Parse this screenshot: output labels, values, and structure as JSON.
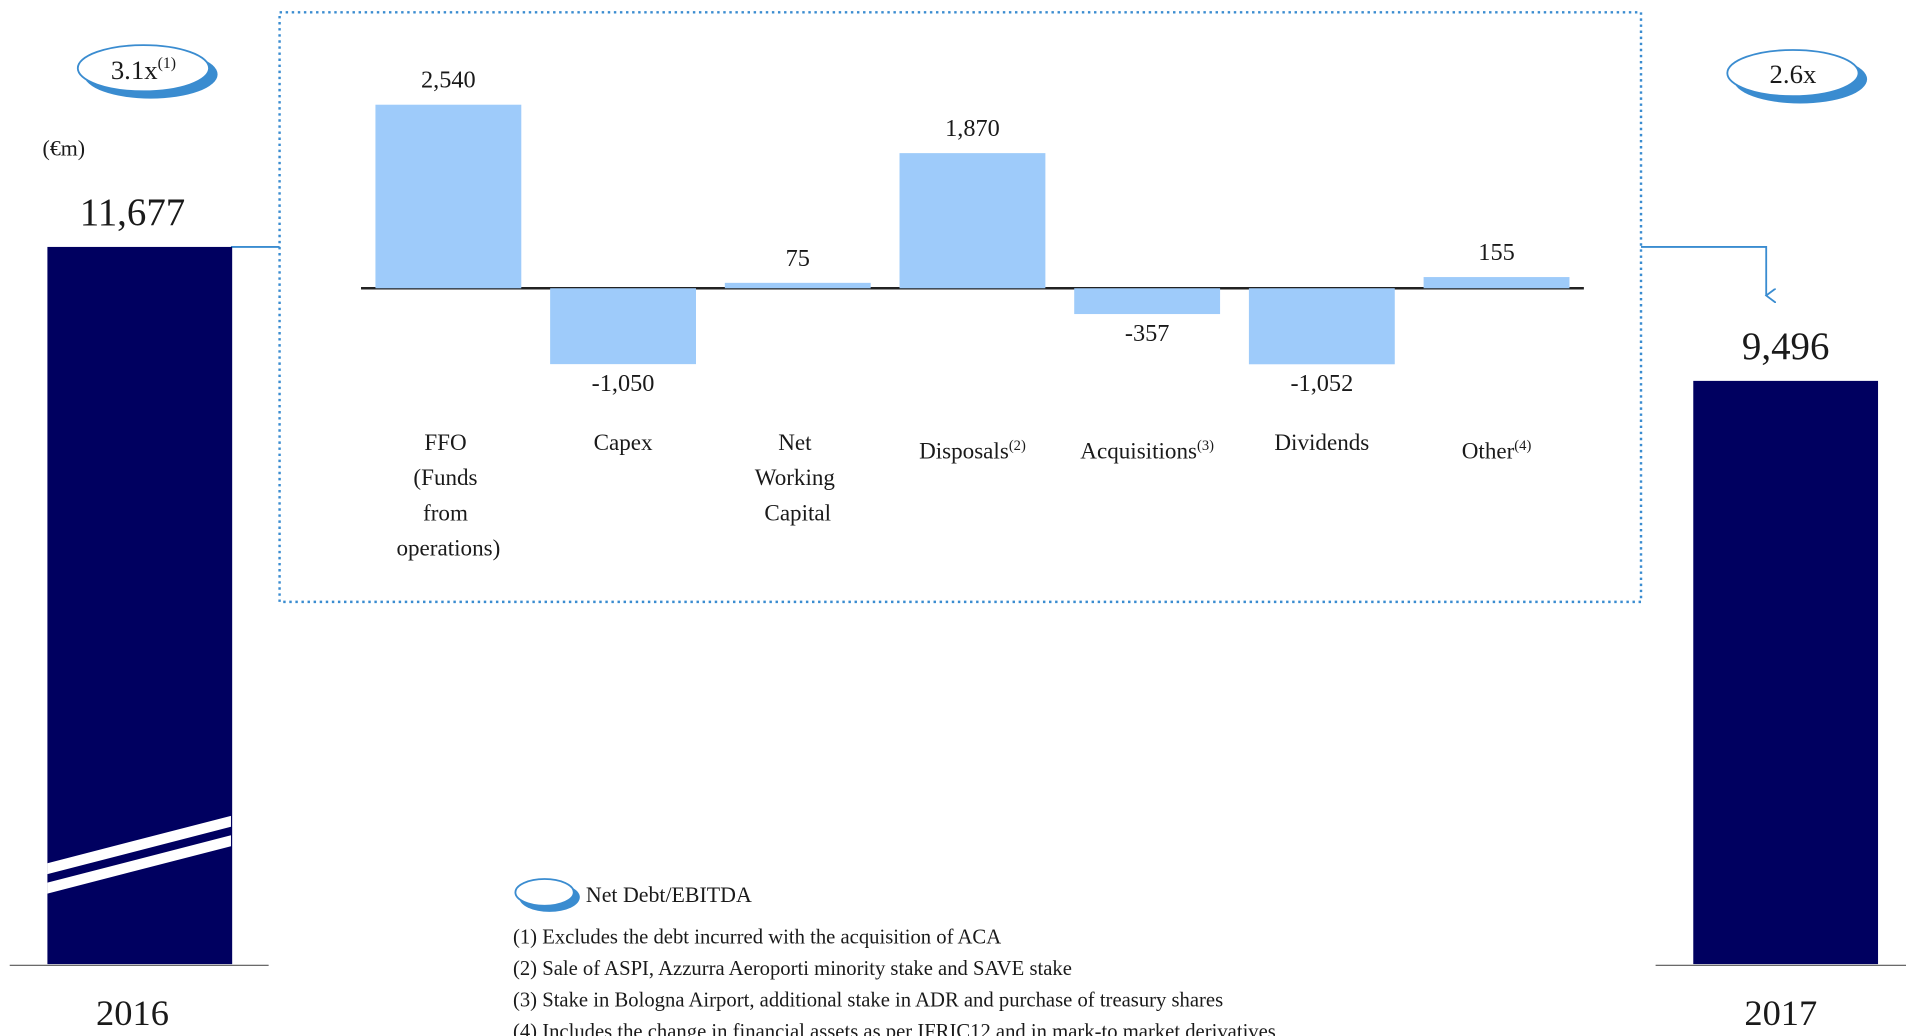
{
  "chart_data": {
    "type": "bar",
    "unit_label": "(€m)",
    "categories": [
      "FFO (Funds from operations)",
      "Capex",
      "Net Working Capital",
      "Disposals",
      "Acquisitions",
      "Dividends",
      "Other"
    ],
    "category_notes": [
      null,
      null,
      null,
      "(2)",
      "(3)",
      null,
      "(4)"
    ],
    "values": [
      2540,
      -1050,
      75,
      1870,
      -357,
      -1052,
      155
    ],
    "value_labels": [
      "2,540",
      "-1,050",
      "75",
      "1,870",
      "-357",
      "-1,052",
      "155"
    ],
    "color": "#9ecbfa",
    "start": {
      "category": "2016",
      "value": 11677,
      "value_label": "11,677",
      "ratio": "3.1x",
      "ratio_note": "(1)",
      "color": "#000060"
    },
    "end": {
      "category": "2017",
      "value": 9496,
      "value_label": "9,496",
      "ratio": "2.6x",
      "color": "#000060"
    },
    "legend": "Net Debt/EBITDA",
    "footnotes": [
      "(1) Excludes the debt incurred with the acquisition of ACA",
      "(2) Sale of ASPI, Azzurra Aeroporti minority stake and SAVE stake",
      "(3) Stake in Bologna Airport, additional stake in ADR and purchase of treasury shares",
      "(4) Includes the change in financial assets as per IFRIC12 and in mark-to market derivatives"
    ]
  }
}
